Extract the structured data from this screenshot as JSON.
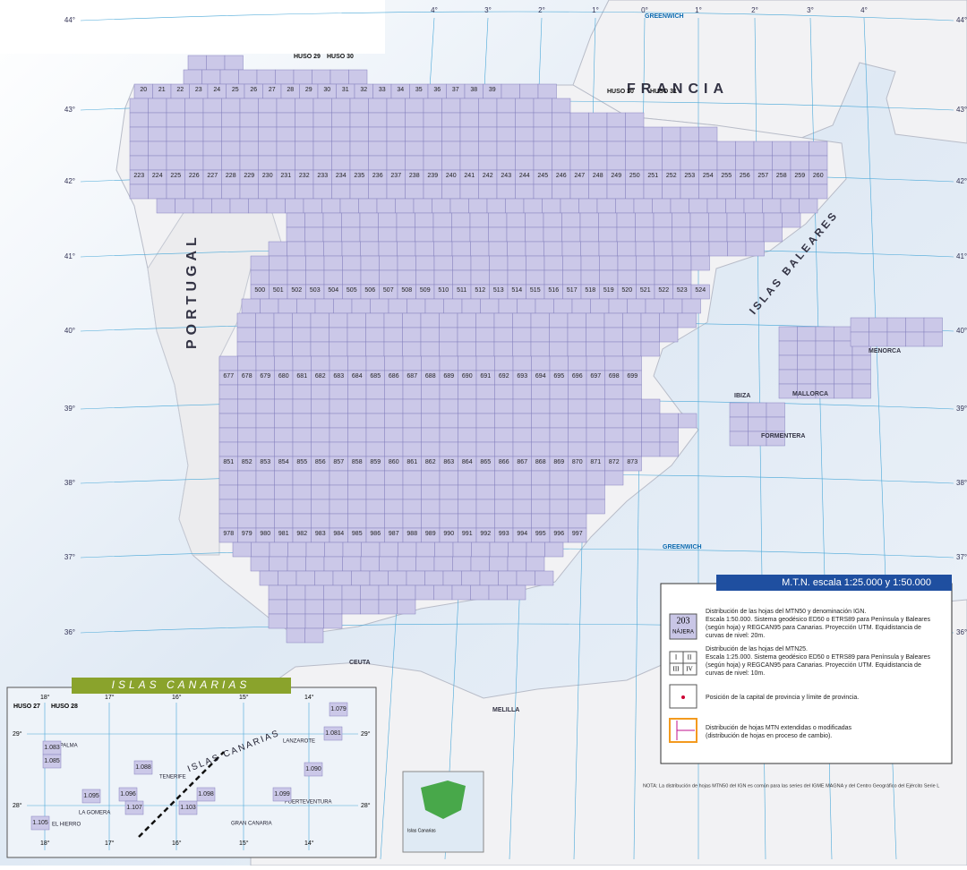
{
  "map": {
    "place_labels": [
      "FRANCIA",
      "PORTUGAL",
      "ISLAS BALEARES",
      "IBIZA",
      "FORMENTERA",
      "MALLORCA",
      "MENORCA",
      "CEUTA",
      "MELILLA",
      "GREENWICH",
      "GREENWICH",
      "HUSO 29",
      "HUSO 30",
      "HUSO 30",
      "HUSO 31"
    ],
    "lat_labels": [
      "44°",
      "43°",
      "42°",
      "41°",
      "40°",
      "39°",
      "38°",
      "37°",
      "36°"
    ],
    "lon_labels": [
      "4°",
      "3°",
      "2°",
      "1°",
      "0°",
      "1°",
      "2°",
      "3°",
      "4°"
    ],
    "sheet_rows": [
      [
        20,
        21,
        22,
        23,
        24,
        25,
        26,
        27,
        28,
        29,
        30,
        31,
        32,
        33,
        34,
        35,
        36,
        37,
        38,
        39
      ],
      [
        223,
        224,
        225,
        226,
        227,
        228,
        229,
        230,
        231,
        232,
        233,
        234,
        235,
        236,
        237,
        238,
        239,
        240,
        241,
        242,
        243,
        244,
        245,
        246,
        247,
        248,
        249,
        250,
        251,
        252,
        253,
        254,
        255,
        256,
        257,
        258,
        259,
        260
      ],
      [
        500,
        501,
        502,
        503,
        504,
        505,
        506,
        507,
        508,
        509,
        510,
        511,
        512,
        513,
        514,
        515,
        516,
        517,
        518,
        519,
        520,
        521,
        522,
        523,
        524
      ],
      [
        677,
        678,
        679,
        680,
        681,
        682,
        683,
        684,
        685,
        686,
        687,
        688,
        689,
        690,
        691,
        692,
        693,
        694,
        695,
        696,
        697,
        698,
        699
      ],
      [
        851,
        852,
        853,
        854,
        855,
        856,
        857,
        858,
        859,
        860,
        861,
        862,
        863,
        864,
        865,
        866,
        867,
        868,
        869,
        870,
        871,
        872,
        873
      ],
      [
        978,
        979,
        980,
        981,
        982,
        983,
        984,
        985,
        986,
        987,
        988,
        989,
        990,
        991,
        992,
        993,
        994,
        995,
        996,
        997
      ]
    ],
    "legend": {
      "title": "M.T.N.   escala 1:25.000 y 1:50.000",
      "sample_number": "203",
      "sample_name": "NÁJERA",
      "quadrants": [
        "I",
        "II",
        "III",
        "IV"
      ],
      "items": [
        [
          "Distribución de las hojas del MTN50 y denominación IGN.",
          "Escala 1:50.000. Sistema geodésico ED50 o ETRS89 para Península y Baleares",
          "(según hoja) y REGCAN95 para Canarias. Proyección UTM. Equidistancia de",
          "curvas de nivel: 20m."
        ],
        [
          "Distribución de las hojas del MTN25.",
          "Escala 1:25.000. Sistema geodésico ED50 o ETRS89 para Península y Baleares",
          "(según hoja) y REGCAN95 para Canarias. Proyección UTM. Equidistancia de",
          "curvas de nivel: 10m."
        ],
        [
          "Posición de la capital de provincia y límite de provincia."
        ],
        [
          "Distribución de hojas MTN extendidas o modificadas",
          "(distribución de hojas en proceso de cambio)."
        ]
      ]
    },
    "note": "NOTA:    La distribución de hojas MTN50 del IGN es común para las series del IGME MAGNA y del Centro Geográfico del Ejército Serie L",
    "inset_label": "Islas Canarias",
    "canarias": {
      "title": "ISLAS CANARIAS",
      "husos": [
        "HUSO 27",
        "HUSO 28"
      ],
      "islands": [
        "LA PALMA",
        "TENERIFE",
        "LA GOMERA",
        "EL HIERRO",
        "GRAN CANARIA",
        "FUERTEVENTURA",
        "LANZAROTE",
        "ISLAS CANARIAS"
      ],
      "lat_labels": [
        "29°",
        "28°"
      ],
      "lon_labels": [
        "18°",
        "17°",
        "16°",
        "15°",
        "14°"
      ],
      "sheets": [
        "1.083",
        "1.085",
        "1.088",
        "1.095",
        "1.096",
        "1.098",
        "1.103",
        "1.105",
        "1.107",
        "1.079",
        "1.081",
        "1.090",
        "1.099"
      ]
    }
  }
}
